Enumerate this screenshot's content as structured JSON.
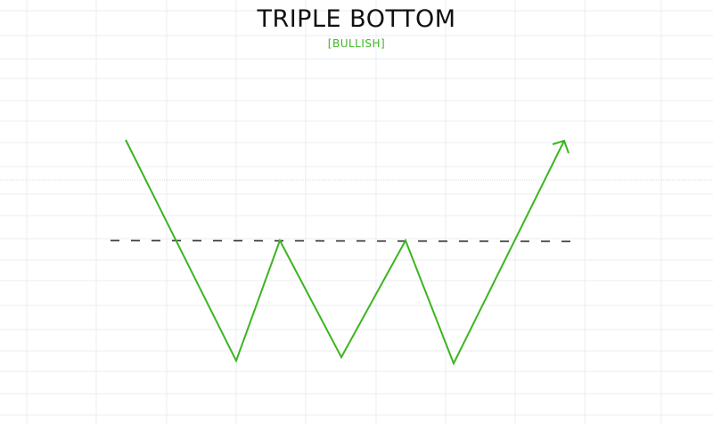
{
  "title": "TRIPLE BOTTOM",
  "subtitle": "[BULLISH]",
  "colors": {
    "price_line": "#3cb521",
    "resistance_line": "#222222",
    "grid": "#e8eef3",
    "title": "#111111"
  },
  "icons": [
    "arrow-head-icon"
  ]
}
